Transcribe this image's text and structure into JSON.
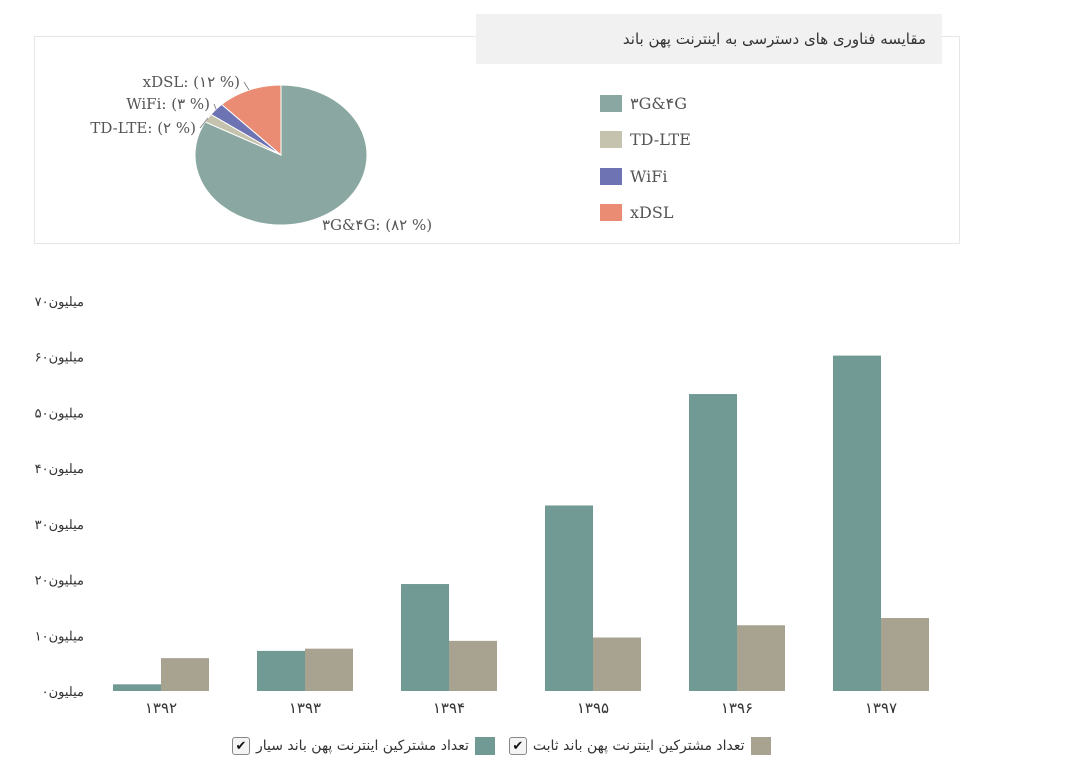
{
  "pie_title": "مقایسه  فناوری های دسترسی  به اینترنت پهن باند",
  "legend_colors": [
    "#8aa8a1",
    "#c5c2ad",
    "#6e73b4",
    "#ea8c73"
  ],
  "bar_colors": {
    "mobile": "#729a95",
    "fixed": "#a8a390"
  },
  "chart_data": [
    {
      "type": "pie",
      "title": "مقایسه  فناوری های دسترسی  به اینترنت پهن باند",
      "legend_placement": "right",
      "slices": [
        {
          "name": "۳G&۴G",
          "value": 82,
          "label": "۳G&۴G: (۸۲ %)"
        },
        {
          "name": "TD-LTE",
          "value": 2,
          "label": "TD-LTE: (۲ %)"
        },
        {
          "name": "WiFi",
          "value": 3,
          "label": "WiFi: (۳ %)"
        },
        {
          "name": "xDSL",
          "value": 12,
          "label": "xDSL: (۱۲ %)"
        }
      ]
    },
    {
      "type": "bar",
      "categories": [
        "۱۳۹۲",
        "۱۳۹۳",
        "۱۳۹۴",
        "۱۳۹۵",
        "۱۳۹۶",
        "۱۳۹۷"
      ],
      "ylim": [
        0,
        70
      ],
      "y_ticks": [
        0,
        10,
        20,
        30,
        40,
        50,
        60,
        70
      ],
      "y_tick_labels": [
        "میلیون۰",
        "میلیون۱۰",
        "میلیون۲۰",
        "میلیون۳۰",
        "میلیون۴۰",
        "میلیون۵۰",
        "میلیون۶۰",
        "میلیون۷۰"
      ],
      "grid": false,
      "legend_placement": "bottom",
      "series": [
        {
          "name": "تعداد مشترکین اینترنت پهن باند سیار",
          "values": [
            1.2,
            7.2,
            19.2,
            33.3,
            53.3,
            60.2
          ]
        },
        {
          "name": "تعداد مشترکین اینترنت پهن باند ثابت",
          "values": [
            5.9,
            7.6,
            9.0,
            9.6,
            11.8,
            13.1
          ]
        }
      ]
    }
  ],
  "checkbox_mark": "✔"
}
